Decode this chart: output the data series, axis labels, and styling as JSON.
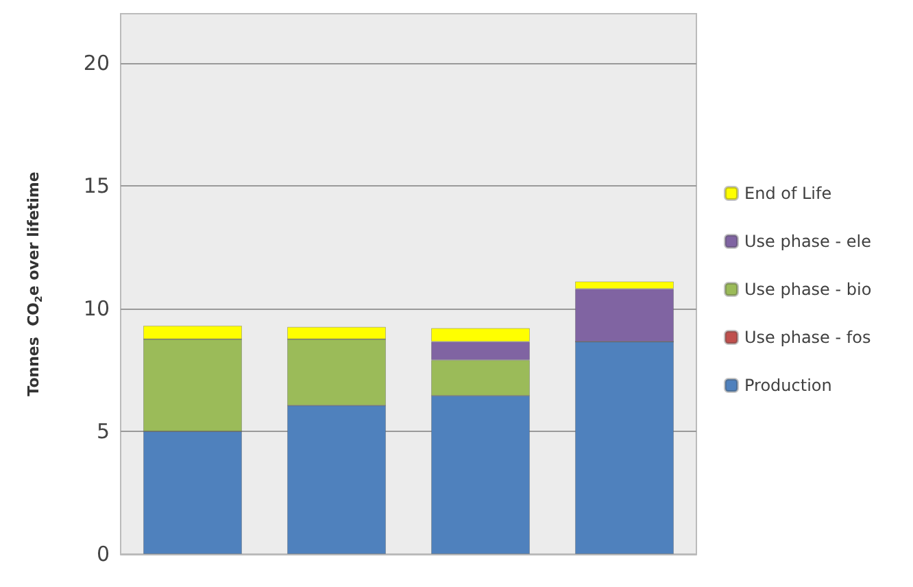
{
  "chart_data": {
    "type": "bar",
    "stacked": true,
    "ylabel": "Tonnes  CO$_{2}$e over lifetime",
    "categories": [
      null,
      null,
      null,
      null
    ],
    "series": [
      {
        "name": "Production",
        "color": "#4f81bd",
        "values": [
          5.0,
          6.05,
          6.45,
          8.65
        ]
      },
      {
        "name": "Use phase - fos",
        "color": "#c0504d",
        "values": [
          0,
          0,
          0,
          0
        ]
      },
      {
        "name": "Use phase - bio",
        "color": "#9bbb59",
        "values": [
          3.75,
          2.7,
          1.45,
          0
        ]
      },
      {
        "name": "Use phase - ele",
        "color": "#8064a2",
        "values": [
          0,
          0,
          0.75,
          2.15
        ]
      },
      {
        "name": "End of Life",
        "color": "#ffff00",
        "values": [
          0.55,
          0.5,
          0.55,
          0.3
        ]
      }
    ],
    "ylim": [
      0,
      22
    ],
    "yticks": [
      0,
      5,
      10,
      15,
      20
    ],
    "grid": "y",
    "legend": "right"
  }
}
